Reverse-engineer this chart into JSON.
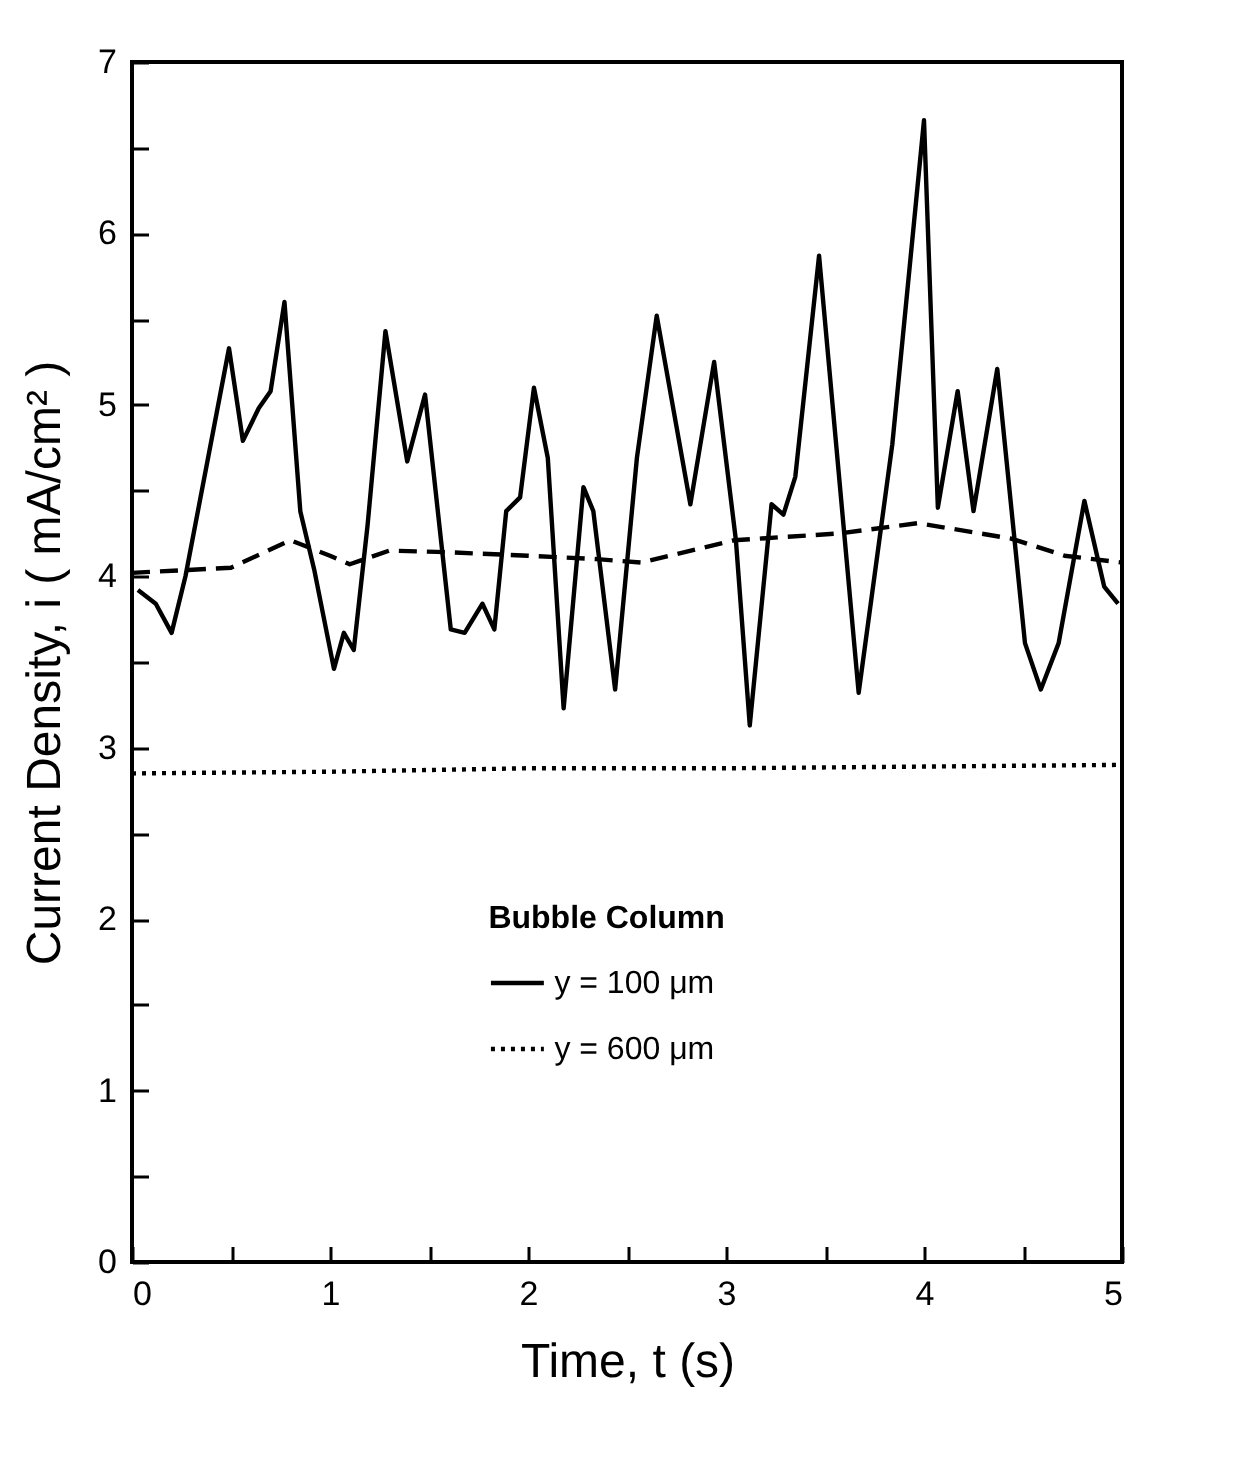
{
  "chart_data": {
    "type": "line",
    "xlabel": "Time, t (s)",
    "ylabel": "Current Density, i ( mA/cm² )",
    "legend_title": "Bubble Column",
    "legend": "bottom",
    "grid": false,
    "xlim": [
      0,
      5
    ],
    "ylim": [
      0,
      7
    ],
    "xticks": [
      0,
      {
        "value": 0.5,
        "label": null
      },
      1,
      {
        "value": 1.5,
        "label": null
      },
      2,
      {
        "value": 2.5,
        "label": null
      },
      3,
      {
        "value": 3.5,
        "label": null
      },
      4,
      {
        "value": 4.5,
        "label": null
      },
      5
    ],
    "yticks": [
      0,
      {
        "value": 0.5,
        "label": null
      },
      1,
      {
        "value": 1.5,
        "label": null
      },
      2,
      {
        "value": 2.5,
        "label": null
      },
      3,
      {
        "value": 3.5,
        "label": null
      },
      4,
      {
        "value": 4.5,
        "label": null
      },
      5,
      {
        "value": 5.5,
        "label": null
      },
      6,
      {
        "value": 6.5,
        "label": null
      },
      7
    ],
    "series": [
      {
        "name": "y = 100 μm",
        "color": "#000000",
        "line_style": "solid",
        "x": [
          0.03,
          0.12,
          0.2,
          0.27,
          0.49,
          0.56,
          0.64,
          0.7,
          0.77,
          0.85,
          0.92,
          1.02,
          1.07,
          1.12,
          1.19,
          1.28,
          1.39,
          1.48,
          1.61,
          1.68,
          1.77,
          1.83,
          1.89,
          1.96,
          2.03,
          2.1,
          2.18,
          2.28,
          2.33,
          2.44,
          2.55,
          2.65,
          2.82,
          2.94,
          3.05,
          3.12,
          3.23,
          3.29,
          3.35,
          3.47,
          3.67,
          3.84,
          4.0,
          4.07,
          4.17,
          4.25,
          4.37,
          4.51,
          4.59,
          4.68,
          4.81,
          4.91,
          4.98
        ],
        "values": [
          3.92,
          3.84,
          3.67,
          4.0,
          5.33,
          4.79,
          4.98,
          5.08,
          5.6,
          4.38,
          4.04,
          3.46,
          3.67,
          3.57,
          4.3,
          5.43,
          4.67,
          5.06,
          3.69,
          3.67,
          3.84,
          3.69,
          4.38,
          4.46,
          5.1,
          4.69,
          3.23,
          4.52,
          4.38,
          3.34,
          4.69,
          5.52,
          4.42,
          5.25,
          4.21,
          3.13,
          4.42,
          4.36,
          4.58,
          5.87,
          3.32,
          4.77,
          6.66,
          4.4,
          5.08,
          4.38,
          5.21,
          3.61,
          3.34,
          3.61,
          4.44,
          3.94,
          3.84
        ]
      },
      {
        "color": "#000000",
        "line_style": "dashed",
        "x": [
          0,
          0.5,
          0.8,
          1.0,
          1.1,
          1.3,
          1.6,
          2.0,
          2.35,
          2.57,
          3.04,
          3.57,
          3.97,
          4.44,
          4.71,
          5.0
        ],
        "values": [
          4.02,
          4.05,
          4.21,
          4.12,
          4.07,
          4.15,
          4.14,
          4.12,
          4.1,
          4.08,
          4.21,
          4.25,
          4.31,
          4.22,
          4.12,
          4.08
        ]
      },
      {
        "name": "y = 600 μm",
        "color": "#000000",
        "line_style": "dotted",
        "x": [
          0,
          1,
          2,
          3,
          4,
          5
        ],
        "values": [
          2.85,
          2.86,
          2.88,
          2.88,
          2.89,
          2.9
        ]
      }
    ]
  }
}
